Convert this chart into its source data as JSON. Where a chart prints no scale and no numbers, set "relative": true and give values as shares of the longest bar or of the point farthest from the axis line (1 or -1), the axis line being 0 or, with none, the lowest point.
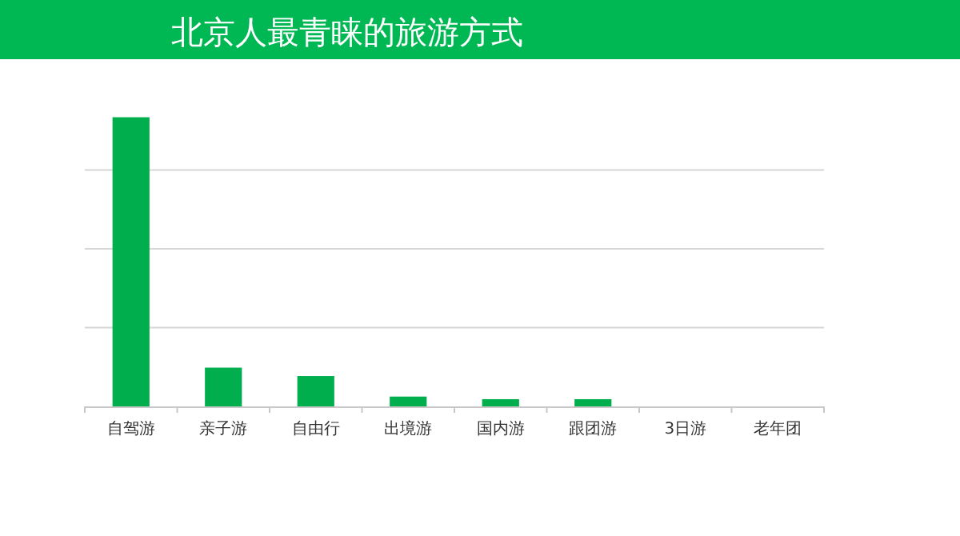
{
  "chart_data": {
    "type": "bar",
    "title": "北京人最青睐的旅游方式",
    "categories": [
      "自驾游",
      "亲子游",
      "自由行",
      "出境游",
      "国内游",
      "跟团游",
      "3日游",
      "老年团"
    ],
    "values": [
      1,
      0.134,
      0.105,
      0.034,
      0.025,
      0.025,
      0,
      0
    ],
    "color": "#00ae4d",
    "relative": true,
    "grid": "y"
  }
}
